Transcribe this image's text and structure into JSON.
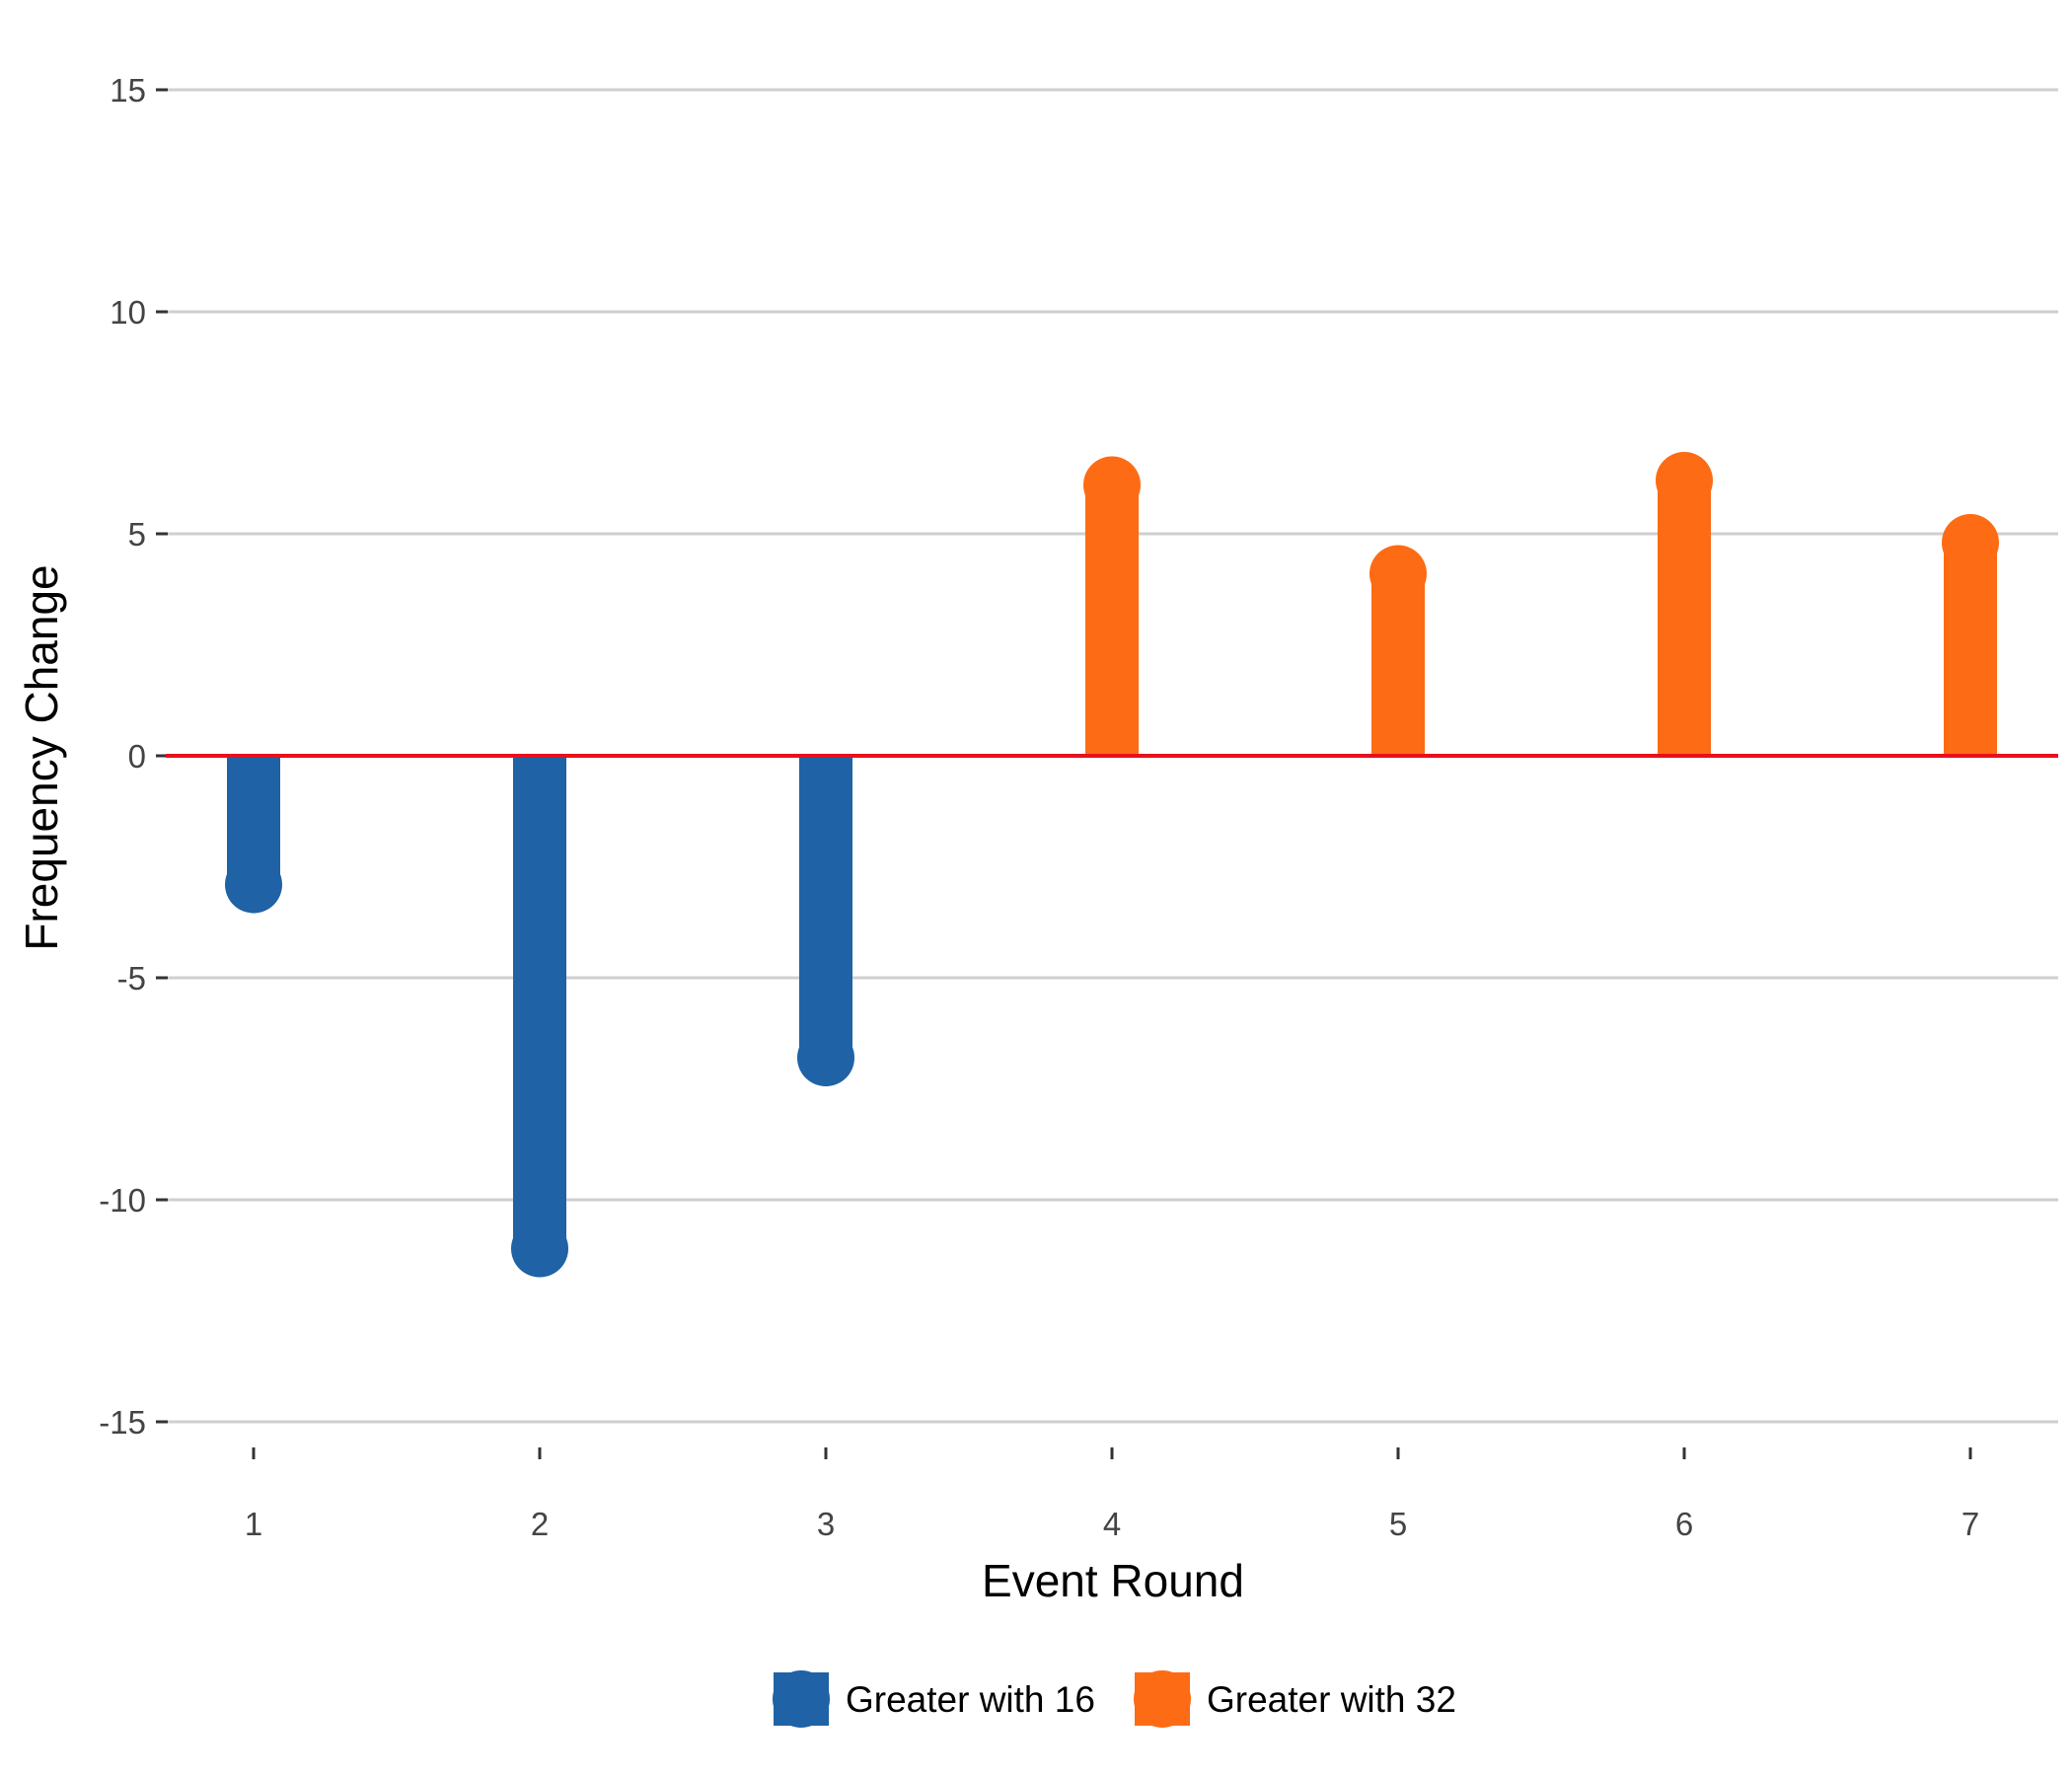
{
  "chart_data": {
    "type": "lollipop",
    "title": "",
    "xlabel": "Event Round",
    "ylabel": "Frequency Change",
    "x_ticks": [
      "1",
      "2",
      "3",
      "4",
      "5",
      "6",
      "7"
    ],
    "y_ticks": [
      "15",
      "10",
      "5",
      "0",
      "-5",
      "-10",
      "-15"
    ],
    "y_tick_values": [
      15,
      10,
      5,
      0,
      -5,
      -10,
      -15
    ],
    "ylim": [
      -15,
      15
    ],
    "grid": "horizontal",
    "baseline": {
      "value": 0,
      "color": "#e8101c"
    },
    "legend_position": "bottom",
    "series": [
      {
        "name": "Greater with 16",
        "color": "#1f62a5",
        "points": [
          {
            "x": 1,
            "y": -2.9
          },
          {
            "x": 2,
            "y": -11.1
          },
          {
            "x": 3,
            "y": -6.8
          }
        ]
      },
      {
        "name": "Greater with 32",
        "color": "#fd6b14",
        "points": [
          {
            "x": 4,
            "y": 6.1
          },
          {
            "x": 5,
            "y": 4.1
          },
          {
            "x": 6,
            "y": 6.2
          },
          {
            "x": 7,
            "y": 4.8
          }
        ]
      }
    ]
  }
}
